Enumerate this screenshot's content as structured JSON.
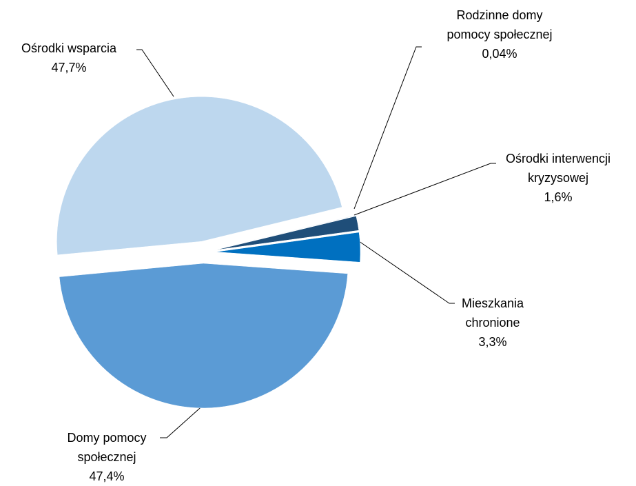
{
  "chart_data": {
    "type": "pie",
    "categories": [
      "Mieszkania chronione",
      "Domy pomocy społecznej",
      "Ośrodki wsparcia",
      "Rodzinne domy pomocy społecznej",
      "Ośrodki interwencji kryzysowej"
    ],
    "values": [
      3.3,
      47.4,
      47.7,
      0.04,
      1.6
    ],
    "value_labels": [
      "3,3%",
      "47,4%",
      "47,7%",
      "0,04%",
      "1,6%"
    ],
    "colors": [
      "#0070c0",
      "#5b9bd5",
      "#bdd7ee",
      "#2e75b6",
      "#1f4e79"
    ]
  }
}
